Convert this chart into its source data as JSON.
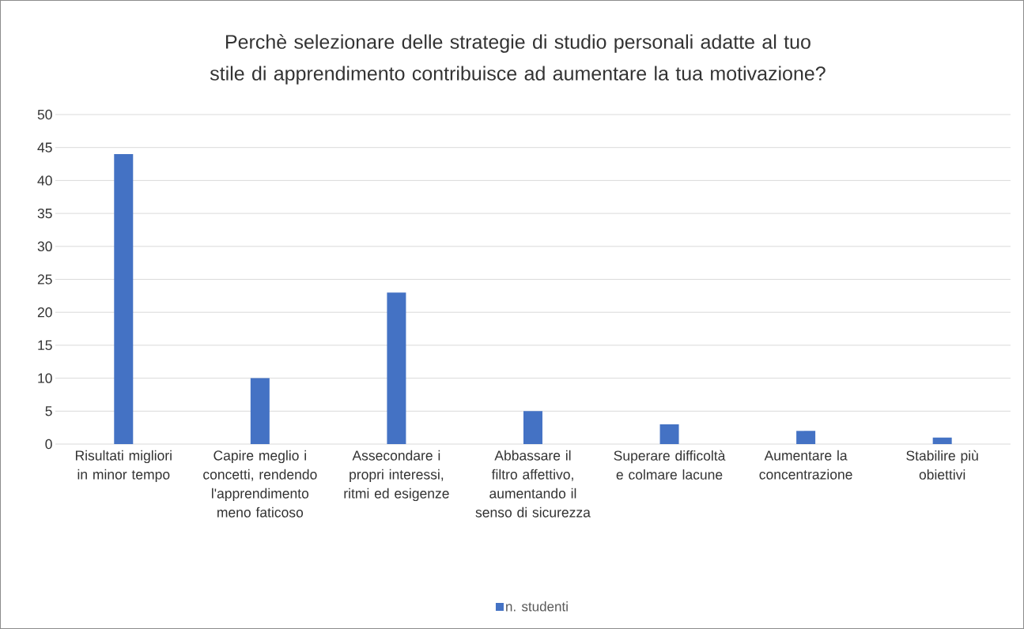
{
  "chart_data": {
    "type": "bar",
    "title": "Perchè selezionare delle strategie di studio personali adatte al tuo stile di apprendimento contribuisce ad aumentare la tua motivazione?",
    "categories": [
      "Risultati migliori in minor tempo",
      "Capire meglio i concetti, rendendo l'apprendimento meno faticoso",
      "Assecondare i propri interessi, ritmi ed esigenze",
      "Abbassare il filtro affettivo, aumentando il senso di sicurezza",
      "Superare difficoltà e colmare lacune",
      "Aumentare la concentrazione",
      "Stabilire più obiettivi"
    ],
    "series": [
      {
        "name": "n. studenti",
        "color": "#4472c4",
        "values": [
          44,
          10,
          23,
          5,
          3,
          2,
          1
        ]
      }
    ],
    "ylim": [
      0,
      50
    ],
    "yticks": [
      0,
      5,
      10,
      15,
      20,
      25,
      30,
      35,
      40,
      45,
      50
    ],
    "grid": "y",
    "legend": "bottom"
  }
}
